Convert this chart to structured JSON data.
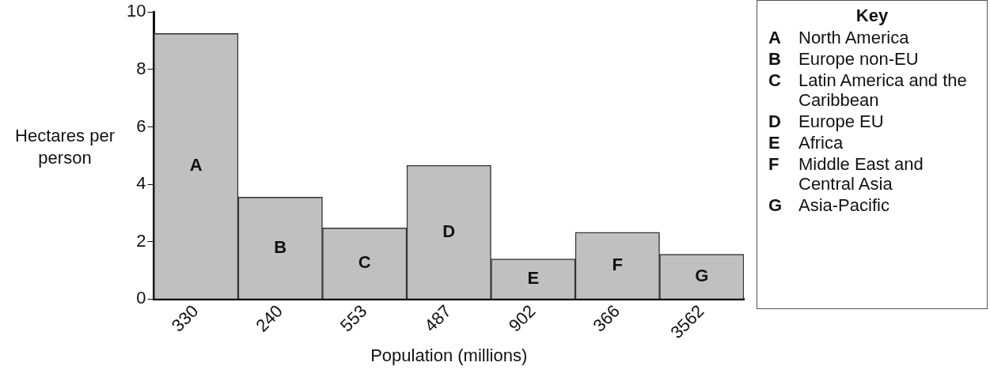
{
  "chart_data": {
    "type": "bar",
    "xlabel": "Population (millions)",
    "ylabel": "Hectares per person",
    "values": [
      9.25,
      3.55,
      2.48,
      4.66,
      1.4,
      2.33,
      1.56
    ],
    "color": "#c0c0c0",
    "categories": [
      "330",
      "240",
      "553",
      "487",
      "902",
      "366",
      "3562"
    ],
    "value_labels": [
      "A",
      "B",
      "C",
      "D",
      "E",
      "F",
      "G"
    ],
    "ylim": [
      0,
      10
    ],
    "yticks": [
      0,
      2,
      4,
      6,
      8,
      10
    ],
    "grid": false,
    "legend_title": "Key",
    "annotations": [
      "A North America",
      "B Europe non-EU",
      "C Latin America and the Caribbean",
      "D Europe EU",
      "E Africa",
      "F Middle East and Central Asia",
      "G Asia-Pacific"
    ]
  }
}
